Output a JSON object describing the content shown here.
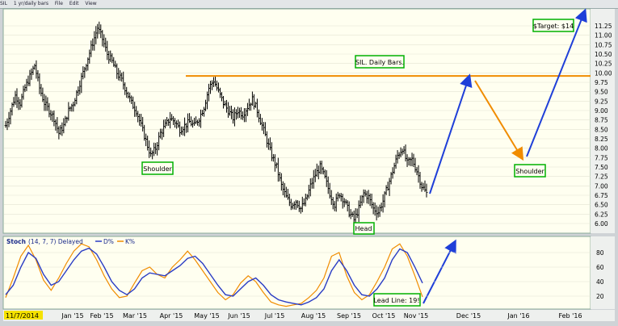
{
  "window": {
    "symbol": "SIL",
    "timeframe": "1 yr/daily bars",
    "menu": [
      "File",
      "Edit",
      "View"
    ]
  },
  "price_panel": {
    "title_box": "SIL. Daily Bars.",
    "target_box": "$Target: $14",
    "labels": {
      "left_shoulder": "Shoulder",
      "head": "Head",
      "right_shoulder": "Shoulder"
    },
    "neckline_level": 9.92
  },
  "stoch_panel": {
    "title": "Stoch",
    "params": "(14, 7, 7) Delayed",
    "legend": [
      {
        "name": "D%",
        "color": "#2a3cc4"
      },
      {
        "name": "K%",
        "color": "#f08c00"
      }
    ],
    "lead_line_box": "Lead Line: 19!"
  },
  "x_axis": {
    "start_date_label": "11/7/2014",
    "months": [
      "Jan '15",
      "Feb '15",
      "Mar '15",
      "Apr '15",
      "May '15",
      "Jun '15",
      "Jul '15",
      "Aug '15",
      "Sep '15",
      "Oct '15",
      "Nov '15",
      "Dec '15",
      "Jan '16",
      "Feb '16"
    ]
  },
  "colors": {
    "background": "#fffff0",
    "bars": "#000000",
    "neckline": "#f08c00",
    "projection_up": "#1f3fd8",
    "projection_down": "#f08c00",
    "label_border": "#00b000"
  },
  "chart_data": [
    {
      "type": "bar",
      "series": "SIL daily OHLC bars (approximate closes)",
      "y_ticks": [
        6.0,
        6.25,
        6.5,
        6.75,
        7.0,
        7.25,
        7.5,
        7.75,
        8.0,
        8.25,
        8.5,
        8.75,
        9.0,
        9.25,
        9.5,
        9.75,
        10.0,
        10.25,
        10.5,
        10.75,
        11.0,
        11.25
      ],
      "ylim": [
        5.75,
        11.6
      ],
      "x_months": [
        "Jan '15",
        "Feb '15",
        "Mar '15",
        "Apr '15",
        "May '15",
        "Jun '15",
        "Jul '15",
        "Aug '15",
        "Sep '15",
        "Oct '15",
        "Nov '15",
        "Dec '15",
        "Jan '16",
        "Feb '16"
      ],
      "closes": [
        8.6,
        9.0,
        9.4,
        9.2,
        9.6,
        9.9,
        10.2,
        9.6,
        9.2,
        9.0,
        8.8,
        8.4,
        8.6,
        9.0,
        9.2,
        9.6,
        10.0,
        10.4,
        10.8,
        11.2,
        10.9,
        10.5,
        10.3,
        10.0,
        9.8,
        9.5,
        9.2,
        9.0,
        8.6,
        8.2,
        7.8,
        8.0,
        8.4,
        8.6,
        8.8,
        8.7,
        8.5,
        8.6,
        8.7,
        8.6,
        8.8,
        9.1,
        9.6,
        9.8,
        9.5,
        9.2,
        9.0,
        8.8,
        9.0,
        8.9,
        9.1,
        9.3,
        9.0,
        8.6,
        8.2,
        7.8,
        7.5,
        7.0,
        6.7,
        6.5,
        6.6,
        6.4,
        6.6,
        7.0,
        7.3,
        7.5,
        7.2,
        6.8,
        6.5,
        6.8,
        6.6,
        6.3,
        6.1,
        6.4,
        6.8,
        6.7,
        6.4,
        6.3,
        6.6,
        7.0,
        7.4,
        7.8,
        8.0,
        7.6,
        7.7,
        7.4,
        7.0,
        6.8
      ],
      "neckline": 9.92,
      "annotations": [
        "SIL. Daily Bars.",
        "$Target: $14",
        "Shoulder",
        "Head",
        "Shoulder"
      ]
    },
    {
      "type": "line",
      "series": [
        {
          "name": "D%",
          "values": [
            22,
            35,
            60,
            80,
            72,
            50,
            35,
            40,
            55,
            70,
            82,
            86,
            78,
            60,
            40,
            28,
            22,
            30,
            45,
            52,
            50,
            48,
            55,
            62,
            72,
            75,
            65,
            50,
            35,
            22,
            20,
            30,
            40,
            45,
            35,
            22,
            15,
            12,
            10,
            8,
            12,
            18,
            30,
            55,
            70,
            55,
            35,
            22,
            20,
            30,
            45,
            70,
            85,
            80,
            60,
            38
          ]
        },
        {
          "name": "K%",
          "values": [
            18,
            45,
            75,
            90,
            70,
            42,
            28,
            45,
            65,
            82,
            92,
            88,
            70,
            48,
            30,
            18,
            20,
            38,
            55,
            60,
            50,
            45,
            60,
            70,
            82,
            70,
            55,
            40,
            25,
            15,
            22,
            38,
            48,
            40,
            25,
            12,
            8,
            6,
            8,
            10,
            18,
            28,
            45,
            75,
            80,
            48,
            25,
            15,
            22,
            40,
            60,
            85,
            92,
            75,
            48,
            19
          ]
        }
      ],
      "y_ticks": [
        20,
        40,
        60,
        80
      ],
      "ylim": [
        0,
        100
      ],
      "annotations": [
        "Lead Line: 19!"
      ]
    }
  ]
}
